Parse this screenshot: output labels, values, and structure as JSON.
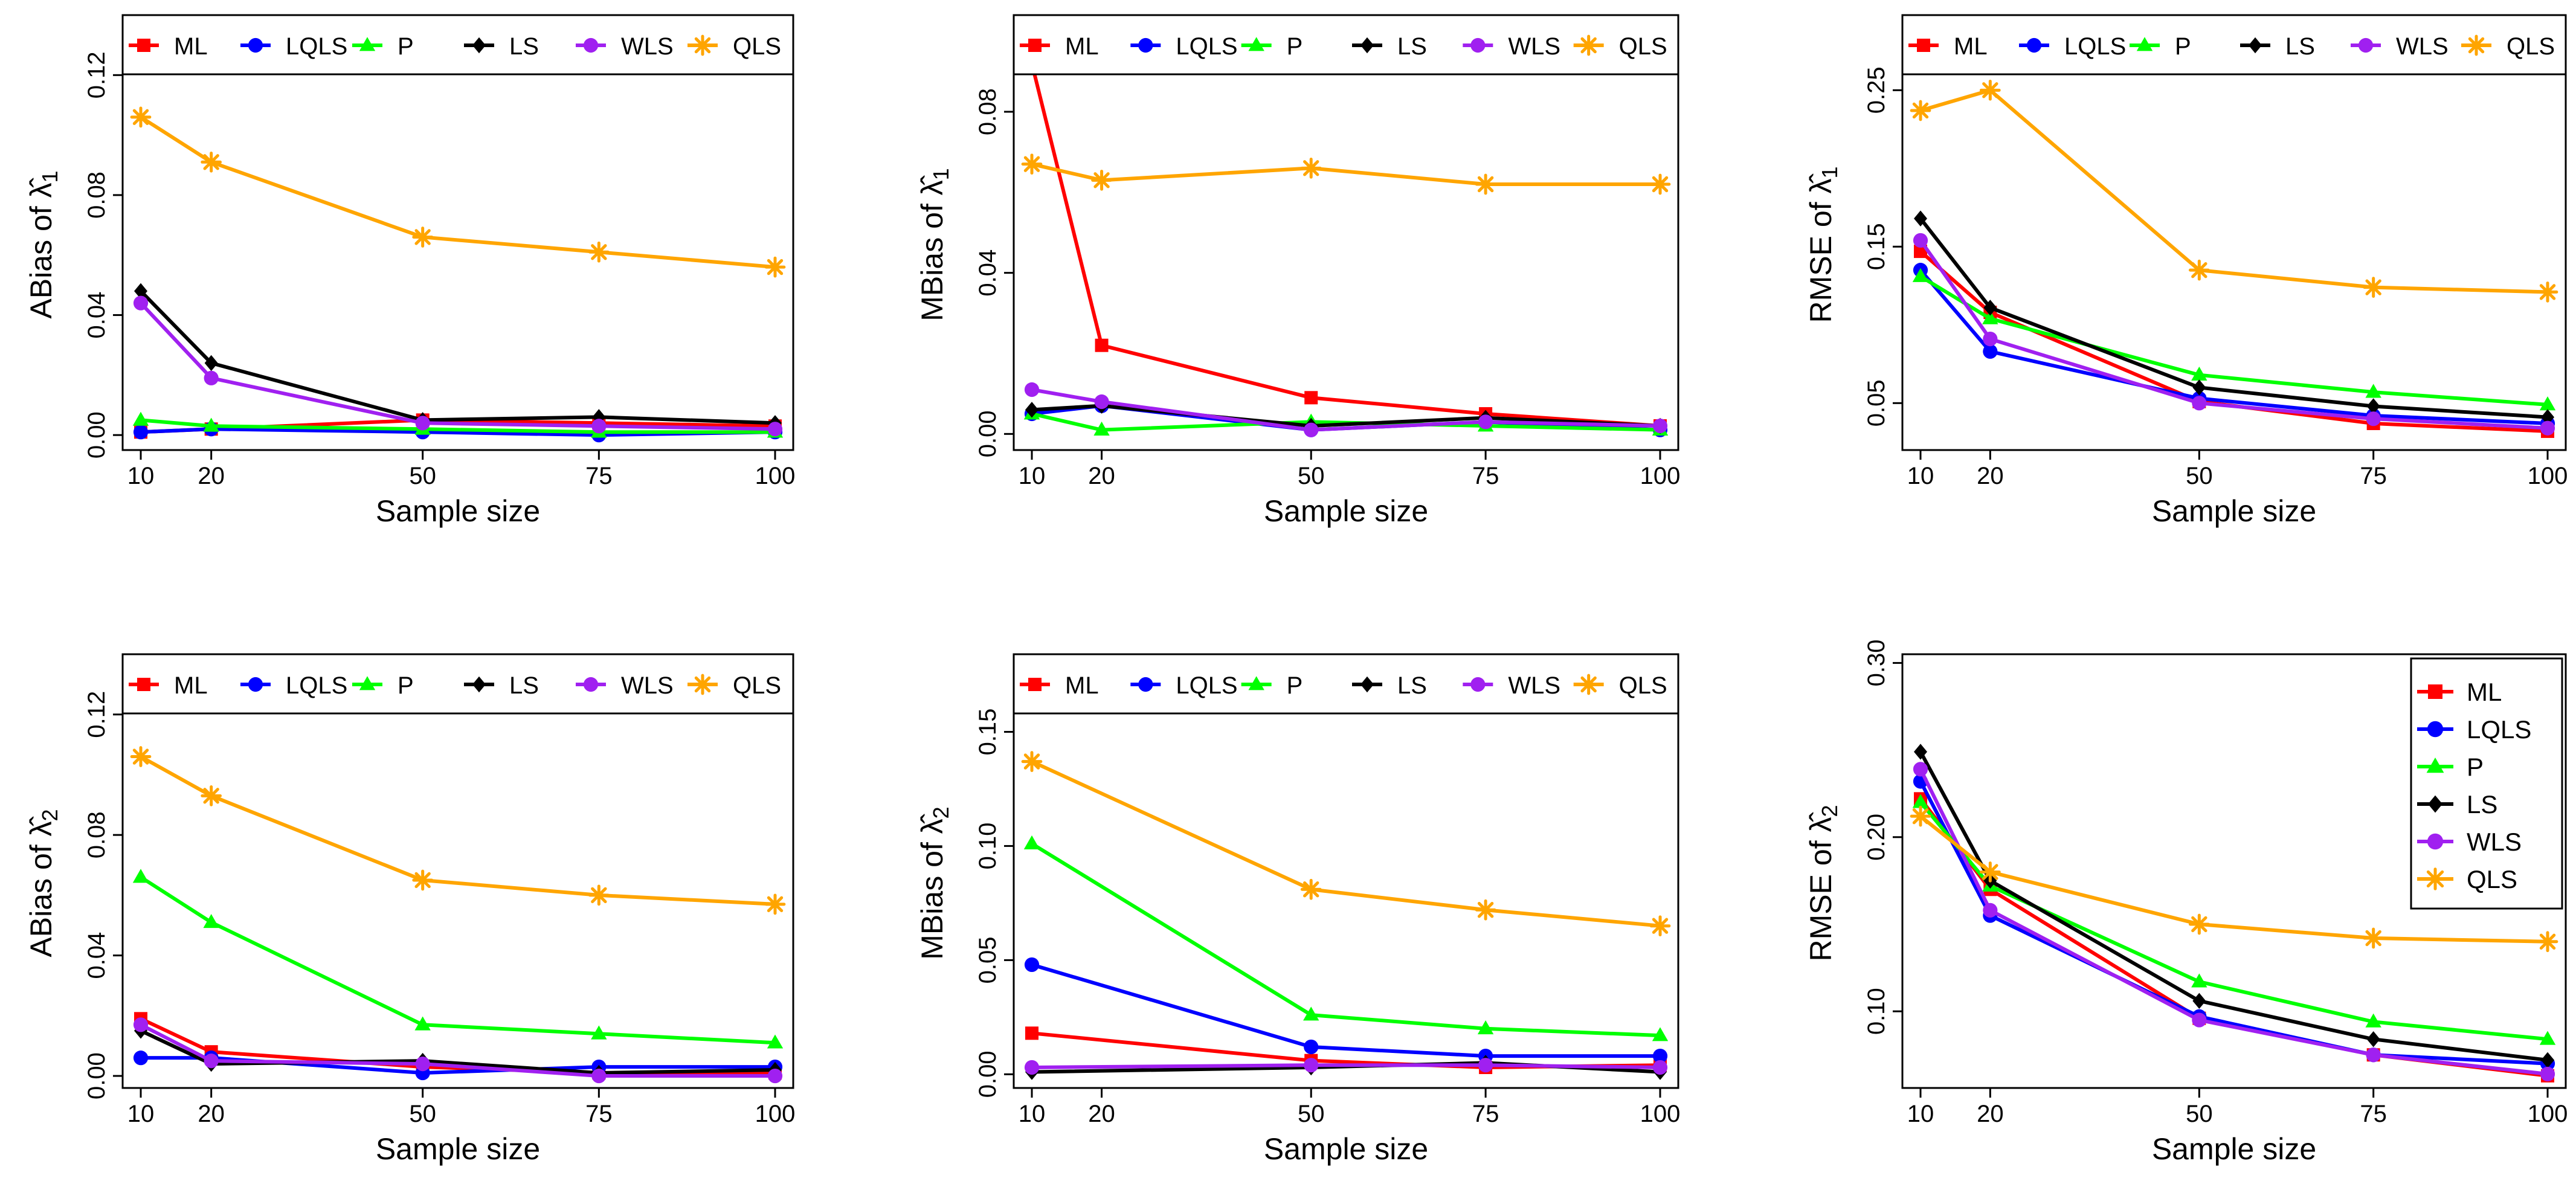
{
  "series_styles": [
    {
      "name": "ML",
      "color": "#ff0000",
      "marker": "square"
    },
    {
      "name": "LQLS",
      "color": "#0000ff",
      "marker": "circle"
    },
    {
      "name": "P",
      "color": "#00ff00",
      "marker": "triangle"
    },
    {
      "name": "LS",
      "color": "#000000",
      "marker": "diamond"
    },
    {
      "name": "WLS",
      "color": "#a020f0",
      "marker": "circle"
    },
    {
      "name": "QLS",
      "color": "#ffa500",
      "marker": "asterisk"
    }
  ],
  "chart_data": [
    {
      "type": "line",
      "id": "abias-l1",
      "ylabel_prefix": "ABias of",
      "ylabel_symbol": "λ",
      "ylabel_sub": "1",
      "xlabel": "Sample size",
      "x": [
        10,
        20,
        50,
        75,
        100
      ],
      "x_ticks": [
        "10",
        "20",
        "50",
        "75",
        "100"
      ],
      "ylim": [
        -0.005,
        0.14
      ],
      "y_ticks": [
        0.0,
        0.04,
        0.08,
        0.12
      ],
      "y_tick_labels": [
        "0.00",
        "0.04",
        "0.08",
        "0.12"
      ],
      "legend": "top-horizontal",
      "series": [
        {
          "name": "ML",
          "values": [
            0.001,
            0.002,
            0.005,
            0.004,
            0.003
          ]
        },
        {
          "name": "LQLS",
          "values": [
            0.001,
            0.002,
            0.001,
            0.0,
            0.001
          ]
        },
        {
          "name": "P",
          "values": [
            0.005,
            0.003,
            0.002,
            0.001,
            0.001
          ]
        },
        {
          "name": "LS",
          "values": [
            0.048,
            0.024,
            0.005,
            0.006,
            0.004
          ]
        },
        {
          "name": "WLS",
          "values": [
            0.044,
            0.019,
            0.004,
            0.003,
            0.002
          ]
        },
        {
          "name": "QLS",
          "values": [
            0.106,
            0.091,
            0.066,
            0.061,
            0.056
          ]
        }
      ]
    },
    {
      "type": "line",
      "id": "mbias-l1",
      "ylabel_prefix": "MBias of",
      "ylabel_symbol": "λ",
      "ylabel_sub": "1",
      "xlabel": "Sample size",
      "x": [
        10,
        20,
        50,
        75,
        100
      ],
      "x_ticks": [
        "10",
        "20",
        "50",
        "75",
        "100"
      ],
      "ylim": [
        -0.004,
        0.104
      ],
      "y_ticks": [
        0.0,
        0.04,
        0.08
      ],
      "y_tick_labels": [
        "0.00",
        "0.04",
        "0.08"
      ],
      "legend": "top-horizontal",
      "series": [
        {
          "name": "ML",
          "values": [
            0.092,
            0.022,
            0.009,
            0.005,
            0.002
          ]
        },
        {
          "name": "LQLS",
          "values": [
            0.005,
            0.007,
            0.001,
            0.003,
            0.001
          ]
        },
        {
          "name": "P",
          "values": [
            0.005,
            0.001,
            0.003,
            0.002,
            0.001
          ]
        },
        {
          "name": "LS",
          "values": [
            0.006,
            0.007,
            0.002,
            0.004,
            0.002
          ]
        },
        {
          "name": "WLS",
          "values": [
            0.011,
            0.008,
            0.001,
            0.003,
            0.002
          ]
        },
        {
          "name": "QLS",
          "values": [
            0.067,
            0.063,
            0.066,
            0.062,
            0.062
          ]
        }
      ]
    },
    {
      "type": "line",
      "id": "rmse-l1",
      "ylabel_prefix": "RMSE of",
      "ylabel_symbol": "λ",
      "ylabel_sub": "1",
      "xlabel": "Sample size",
      "x": [
        10,
        20,
        50,
        75,
        100
      ],
      "x_ticks": [
        "10",
        "20",
        "50",
        "75",
        "100"
      ],
      "ylim": [
        0.02,
        0.298
      ],
      "y_ticks": [
        0.05,
        0.15,
        0.25
      ],
      "y_tick_labels": [
        "0.05",
        "0.15",
        "0.25"
      ],
      "legend": "top-horizontal",
      "series": [
        {
          "name": "ML",
          "values": [
            0.147,
            0.108,
            0.051,
            0.037,
            0.032
          ]
        },
        {
          "name": "LQLS",
          "values": [
            0.135,
            0.083,
            0.053,
            0.042,
            0.037
          ]
        },
        {
          "name": "P",
          "values": [
            0.131,
            0.104,
            0.068,
            0.057,
            0.049
          ]
        },
        {
          "name": "LS",
          "values": [
            0.168,
            0.111,
            0.06,
            0.048,
            0.041
          ]
        },
        {
          "name": "WLS",
          "values": [
            0.154,
            0.091,
            0.05,
            0.04,
            0.034
          ]
        },
        {
          "name": "QLS",
          "values": [
            0.237,
            0.25,
            0.135,
            0.124,
            0.121
          ]
        }
      ]
    },
    {
      "type": "line",
      "id": "abias-l2",
      "ylabel_prefix": "ABias of",
      "ylabel_symbol": "λ",
      "ylabel_sub": "2",
      "xlabel": "Sample size",
      "x": [
        10,
        20,
        50,
        75,
        100
      ],
      "x_ticks": [
        "10",
        "20",
        "50",
        "75",
        "100"
      ],
      "ylim": [
        -0.004,
        0.14
      ],
      "y_ticks": [
        0.0,
        0.04,
        0.08,
        0.12
      ],
      "y_tick_labels": [
        "0.00",
        "0.04",
        "0.08",
        "0.12"
      ],
      "legend": "top-horizontal",
      "series": [
        {
          "name": "ML",
          "values": [
            0.019,
            0.008,
            0.003,
            0.001,
            0.001
          ]
        },
        {
          "name": "LQLS",
          "values": [
            0.006,
            0.006,
            0.001,
            0.003,
            0.003
          ]
        },
        {
          "name": "P",
          "values": [
            0.066,
            0.051,
            0.017,
            0.014,
            0.011
          ]
        },
        {
          "name": "LS",
          "values": [
            0.015,
            0.004,
            0.005,
            0.001,
            0.002
          ]
        },
        {
          "name": "WLS",
          "values": [
            0.017,
            0.005,
            0.004,
            0.0,
            0.0
          ]
        },
        {
          "name": "QLS",
          "values": [
            0.106,
            0.093,
            0.065,
            0.06,
            0.057
          ]
        }
      ]
    },
    {
      "type": "line",
      "id": "mbias-l2",
      "ylabel_prefix": "MBias of",
      "ylabel_symbol": "λ",
      "ylabel_sub": "2",
      "xlabel": "Sample size",
      "x": [
        10,
        20,
        50,
        75,
        100
      ],
      "x_ticks": [
        "10",
        "20",
        "50",
        "75",
        "100"
      ],
      "ylim": [
        -0.006,
        0.184
      ],
      "y_ticks": [
        0.0,
        0.05,
        0.1,
        0.15
      ],
      "y_tick_labels": [
        "0.00",
        "0.05",
        "0.10",
        "0.15"
      ],
      "legend": "top-horizontal",
      "series": [
        {
          "name": "ML",
          "values": [
            0.018,
            null,
            0.006,
            0.003,
            0.004
          ]
        },
        {
          "name": "LQLS",
          "values": [
            0.048,
            null,
            0.012,
            0.008,
            0.008
          ]
        },
        {
          "name": "P",
          "values": [
            0.101,
            null,
            0.026,
            0.02,
            0.017
          ]
        },
        {
          "name": "LS",
          "values": [
            0.001,
            null,
            0.003,
            0.005,
            0.001
          ]
        },
        {
          "name": "WLS",
          "values": [
            0.003,
            null,
            0.004,
            0.004,
            0.003
          ]
        },
        {
          "name": "QLS",
          "values": [
            0.137,
            null,
            0.081,
            0.072,
            0.065
          ]
        }
      ]
    },
    {
      "type": "line",
      "id": "rmse-l2",
      "ylabel_prefix": "RMSE of",
      "ylabel_symbol": "λ",
      "ylabel_sub": "2",
      "xlabel": "Sample size",
      "x": [
        10,
        20,
        50,
        75,
        100
      ],
      "x_ticks": [
        "10",
        "20",
        "50",
        "75",
        "100"
      ],
      "ylim": [
        0.056,
        0.305
      ],
      "y_ticks": [
        0.1,
        0.2,
        0.3
      ],
      "y_tick_labels": [
        "0.10",
        "0.20",
        "0.30"
      ],
      "legend": "top-right-vertical",
      "series": [
        {
          "name": "ML",
          "values": [
            0.222,
            0.17,
            0.096,
            0.075,
            0.063
          ]
        },
        {
          "name": "LQLS",
          "values": [
            0.232,
            0.155,
            0.097,
            0.075,
            0.07
          ]
        },
        {
          "name": "P",
          "values": [
            0.22,
            0.172,
            0.117,
            0.094,
            0.084
          ]
        },
        {
          "name": "LS",
          "values": [
            0.249,
            0.175,
            0.106,
            0.084,
            0.072
          ]
        },
        {
          "name": "WLS",
          "values": [
            0.239,
            0.158,
            0.095,
            0.075,
            0.064
          ]
        },
        {
          "name": "QLS",
          "values": [
            0.212,
            0.18,
            0.15,
            0.142,
            0.14
          ]
        }
      ]
    }
  ]
}
